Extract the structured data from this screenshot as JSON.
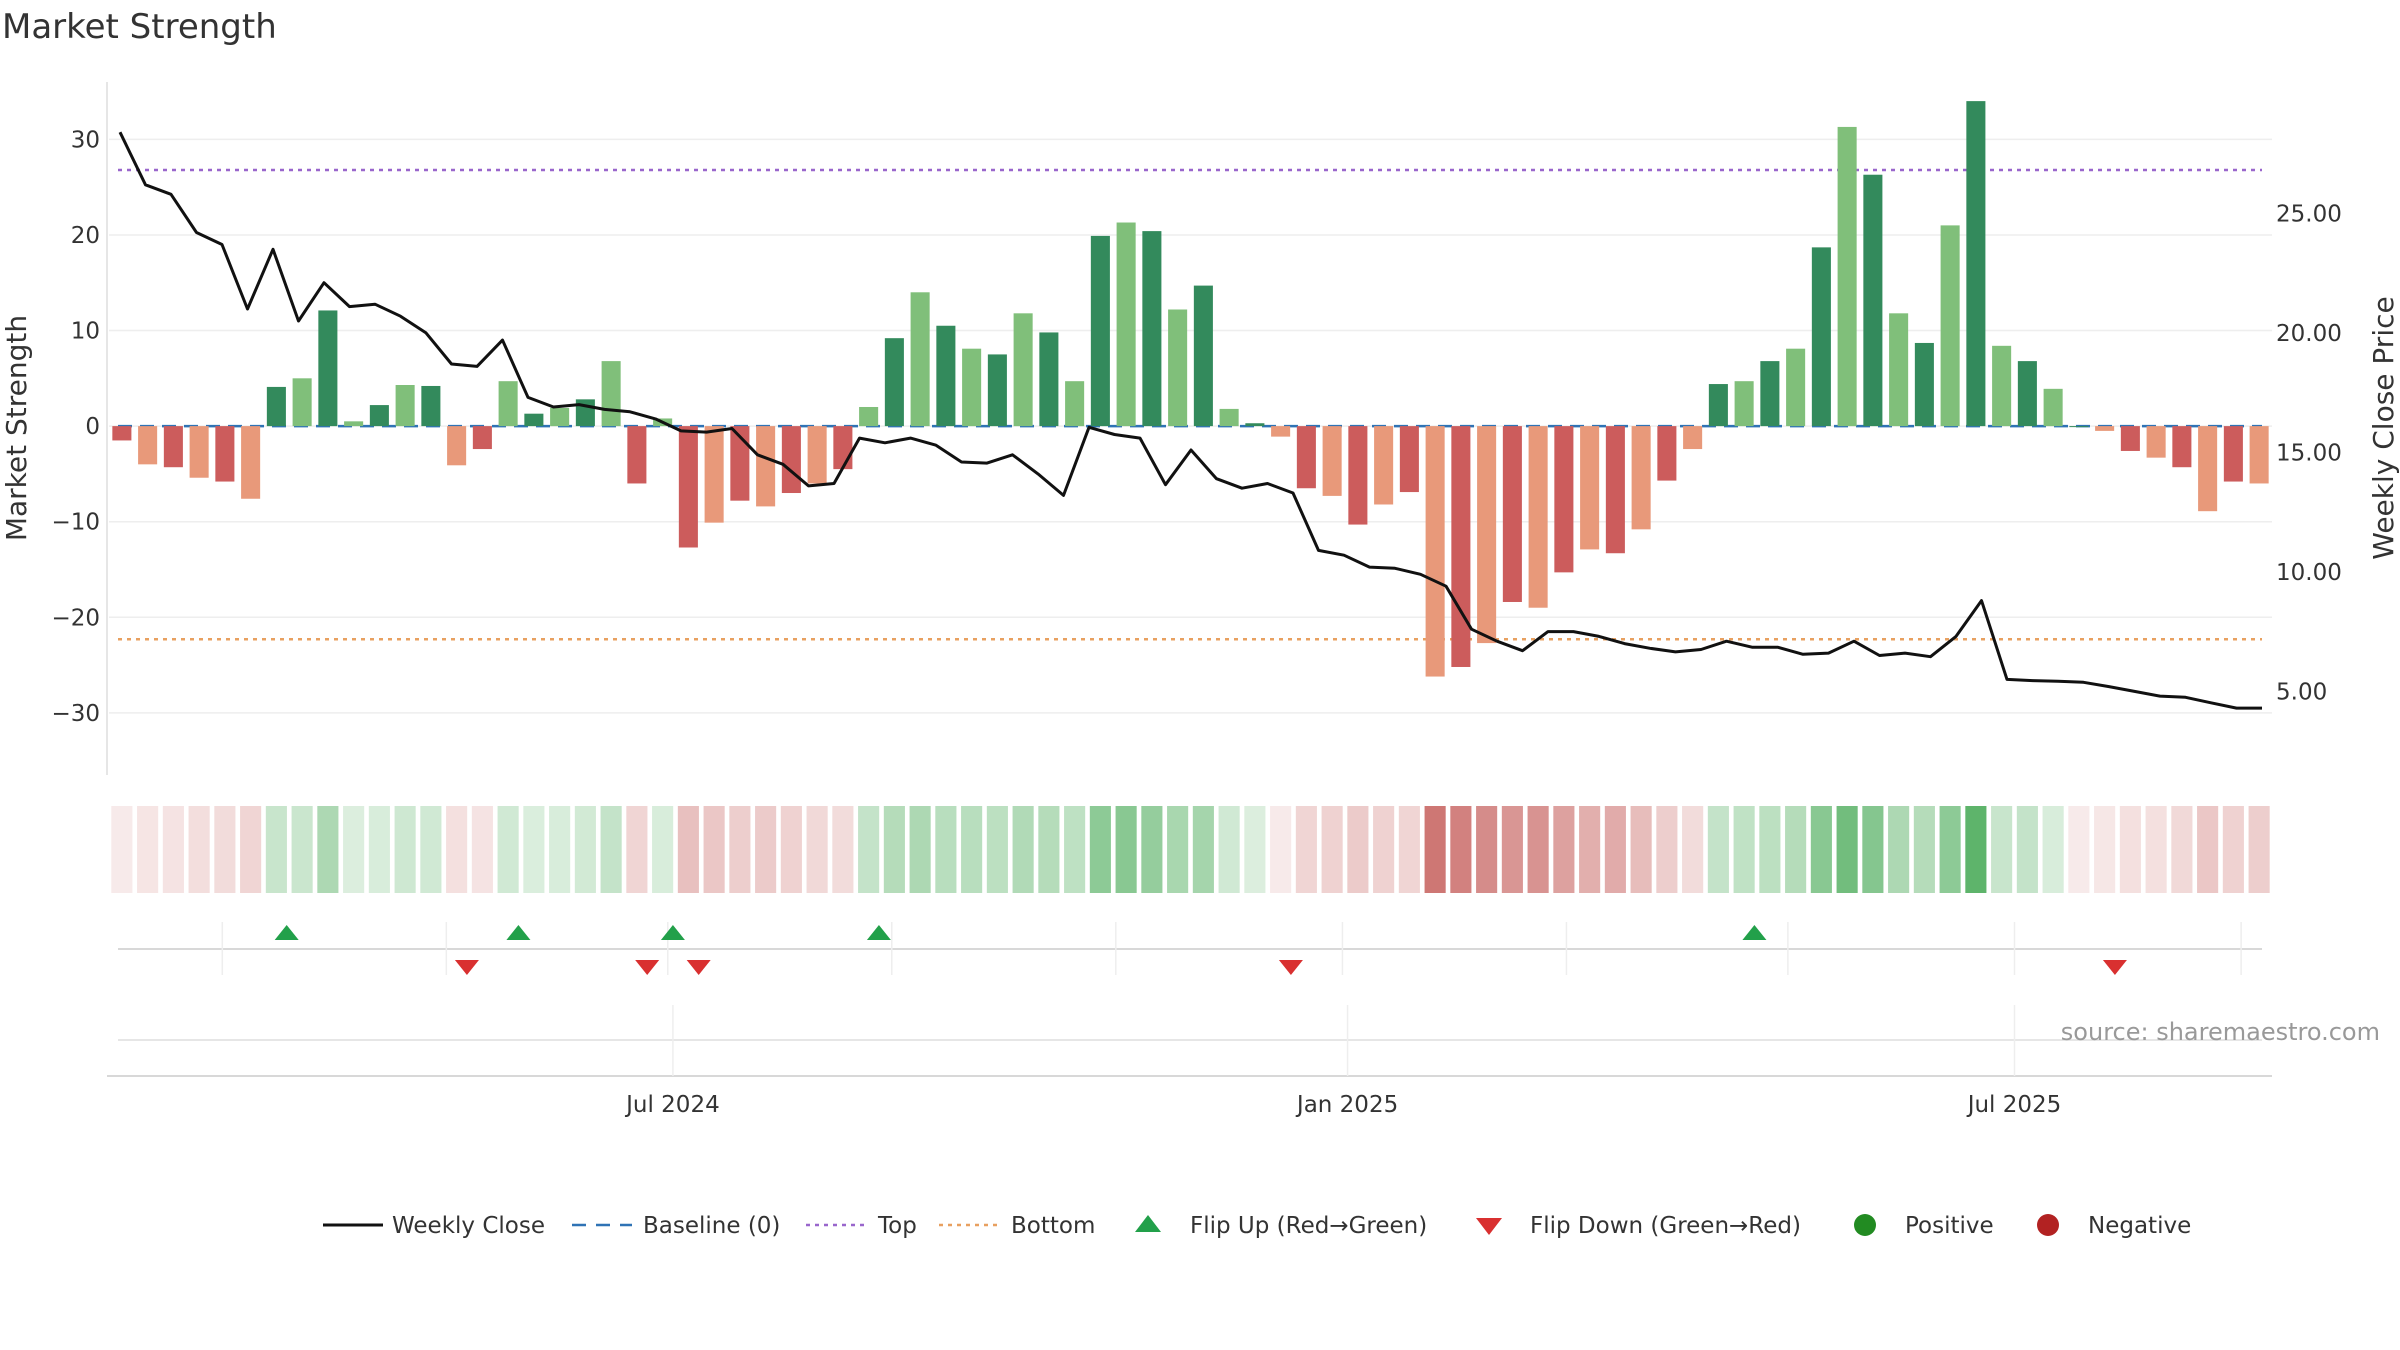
{
  "chart_data": {
    "type": "bar",
    "title": "Market Strength",
    "ylabel_left": "Market Strength",
    "ylabel_right": "Weekly Close Price",
    "source": "source: sharemaestro.com",
    "ylim_left": [
      -36.5,
      36
    ],
    "ylim_right": [
      1.5,
      30.5
    ],
    "left_ticks": [
      30,
      20,
      10,
      0,
      -10,
      -20,
      -30
    ],
    "left_tick_labels": [
      "30",
      "20",
      "10",
      "0",
      "−10",
      "−20",
      "−30"
    ],
    "right_ticks": [
      25,
      20,
      15,
      10,
      5
    ],
    "right_tick_labels": [
      "25.00",
      "20.00",
      "15.00",
      "10.00",
      "5.00"
    ],
    "x_tick_labels": [
      "Jul 2024",
      "Jan 2025",
      "Jul 2025"
    ],
    "x_tick_weeks": [
      21.4,
      47.6,
      73.5
    ],
    "top_level": 26.8,
    "bottom_level": -22.3,
    "values": [
      -1.5,
      -4,
      -4.3,
      -5.4,
      -5.8,
      -7.6,
      4.1,
      5,
      12.1,
      0.5,
      2.2,
      4.3,
      4.2,
      -4.1,
      -2.4,
      4.7,
      1.3,
      1.9,
      2.8,
      6.8,
      -6,
      0.8,
      -12.7,
      -10.1,
      -7.8,
      -8.4,
      -7,
      -6,
      -4.5,
      2,
      9.2,
      14,
      10.5,
      8.1,
      7.5,
      11.8,
      9.8,
      4.7,
      19.9,
      21.3,
      20.4,
      12.2,
      14.7,
      1.8,
      0.3,
      -1.1,
      -6.5,
      -7.3,
      -10.3,
      -8.2,
      -6.9,
      -26.2,
      -25.2,
      -22.7,
      -18.4,
      -19,
      -15.3,
      -12.9,
      -13.3,
      -10.8,
      -5.7,
      -2.4,
      4.4,
      4.7,
      6.8,
      8.1,
      18.7,
      31.3,
      26.3,
      11.8,
      8.7,
      21,
      34,
      8.4,
      6.8,
      3.9,
      0,
      -0.5,
      -2.6,
      -3.3,
      -4.3,
      -8.9,
      -5.8,
      -6
    ],
    "price": [
      28.4,
      26.2,
      25.8,
      24.2,
      23.7,
      21,
      23.5,
      20.5,
      22.1,
      21.1,
      21.2,
      20.7,
      20,
      18.7,
      18.6,
      19.7,
      17.3,
      16.9,
      17,
      16.8,
      16.7,
      16.4,
      15.9,
      15.85,
      16,
      14.9,
      14.5,
      13.6,
      13.7,
      15.6,
      15.4,
      15.6,
      15.3,
      14.6,
      14.55,
      14.9,
      14.1,
      13.2,
      16.05,
      15.75,
      15.6,
      13.65,
      15.1,
      13.9,
      13.5,
      13.7,
      13.3,
      10.9,
      10.7,
      10.2,
      10.15,
      9.9,
      9.4,
      7.6,
      7.1,
      6.7,
      7.5,
      7.5,
      7.3,
      7,
      6.8,
      6.65,
      6.75,
      7.1,
      6.85,
      6.85,
      6.55,
      6.6,
      7.1,
      6.5,
      6.6,
      6.45,
      7.3,
      8.8,
      5.5,
      5.45,
      5.42,
      5.38,
      5.2,
      5,
      4.8,
      4.75,
      4.52,
      4.3,
      4.3
    ],
    "strip_levels": [
      -0.12,
      -0.15,
      -0.16,
      -0.19,
      -0.2,
      -0.24,
      0.28,
      0.27,
      0.42,
      0.18,
      0.2,
      0.25,
      0.24,
      -0.18,
      -0.16,
      0.24,
      0.19,
      0.2,
      0.23,
      0.3,
      -0.24,
      0.2,
      -0.36,
      -0.32,
      -0.28,
      -0.3,
      -0.26,
      -0.22,
      -0.2,
      0.3,
      0.38,
      0.42,
      0.36,
      0.36,
      0.34,
      0.4,
      0.38,
      0.33,
      0.58,
      0.6,
      0.54,
      0.44,
      0.46,
      0.24,
      0.18,
      -0.12,
      -0.24,
      -0.26,
      -0.3,
      -0.26,
      -0.24,
      -0.78,
      -0.72,
      -0.66,
      -0.6,
      -0.62,
      -0.54,
      -0.46,
      -0.48,
      -0.38,
      -0.28,
      -0.2,
      0.3,
      0.32,
      0.34,
      0.38,
      0.6,
      0.72,
      0.62,
      0.42,
      0.38,
      0.58,
      0.82,
      0.28,
      0.3,
      0.2,
      -0.12,
      -0.14,
      -0.18,
      -0.18,
      -0.22,
      -0.32,
      -0.26,
      -0.28
    ],
    "flip_up_weeks": [
      6.4,
      15.4,
      21.4,
      29.4,
      63.4
    ],
    "flip_down_weeks": [
      13.4,
      20.4,
      22.4,
      45.4,
      77.4
    ],
    "flip_grid_weeks": [
      3.9,
      12.6,
      21.2,
      29.9,
      38.6,
      47.4,
      56.1,
      64.7,
      73.5,
      82.3
    ],
    "legend": [
      "Weekly Close",
      "Baseline (0)",
      "Top",
      "Bottom",
      "Flip Up (Red→Green)",
      "Flip Down (Green→Red)",
      "Positive",
      "Negative"
    ],
    "colors": {
      "pos_strong": "#338a5c",
      "pos_light": "#80bf7a",
      "neg_strong": "#cc5c5c",
      "neg_light": "#e8997a",
      "price_line": "#111111",
      "baseline": "#2f73b5",
      "top": "#9966cc",
      "bottom": "#e8a060",
      "flip_up": "#22a04a",
      "flip_down": "#d93030",
      "positive_dot": "#228b22",
      "negative_dot": "#b22222",
      "grid": "#eeeeee"
    }
  }
}
